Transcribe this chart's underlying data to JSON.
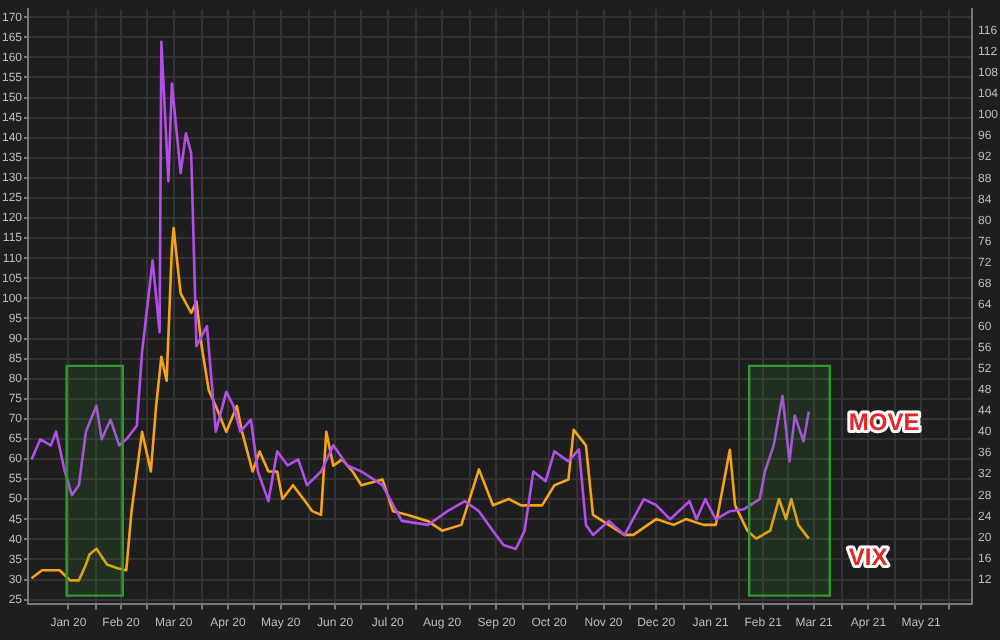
{
  "chart_data": {
    "type": "line",
    "xlim": [
      "2019-12-24",
      "2021-06-14"
    ],
    "xticks": [
      {
        "value": "2020-01-16",
        "label": "Jan 20"
      },
      {
        "value": "2020-02-01",
        "label": null
      },
      {
        "value": "2020-02-15",
        "label": "Feb 20"
      },
      {
        "value": "2020-03-01",
        "label": null
      },
      {
        "value": "2020-03-16",
        "label": "Mar 20"
      },
      {
        "value": "2020-04-01",
        "label": null
      },
      {
        "value": "2020-04-16",
        "label": "Apr 20"
      },
      {
        "value": "2020-05-01",
        "label": null
      },
      {
        "value": "2020-05-16",
        "label": "May 20"
      },
      {
        "value": "2020-06-01",
        "label": null
      },
      {
        "value": "2020-06-16",
        "label": "Jun 20"
      },
      {
        "value": "2020-07-01",
        "label": null
      },
      {
        "value": "2020-07-16",
        "label": "Jul 20"
      },
      {
        "value": "2020-08-01",
        "label": null
      },
      {
        "value": "2020-08-16",
        "label": "Aug 20"
      },
      {
        "value": "2020-09-01",
        "label": null
      },
      {
        "value": "2020-09-16",
        "label": "Sep 20"
      },
      {
        "value": "2020-10-01",
        "label": null
      },
      {
        "value": "2020-10-16",
        "label": "Oct 20"
      },
      {
        "value": "2020-11-01",
        "label": null
      },
      {
        "value": "2020-11-16",
        "label": "Nov 20"
      },
      {
        "value": "2020-12-01",
        "label": null
      },
      {
        "value": "2020-12-16",
        "label": "Dec 20"
      },
      {
        "value": "2021-01-01",
        "label": null
      },
      {
        "value": "2021-01-16",
        "label": "Jan 21"
      },
      {
        "value": "2021-02-01",
        "label": null
      },
      {
        "value": "2021-02-15",
        "label": "Feb 21"
      },
      {
        "value": "2021-03-01",
        "label": null
      },
      {
        "value": "2021-03-16",
        "label": "Mar 21"
      },
      {
        "value": "2021-04-01",
        "label": null
      },
      {
        "value": "2021-04-16",
        "label": "Apr 21"
      },
      {
        "value": "2021-05-01",
        "label": null
      },
      {
        "value": "2021-05-16",
        "label": "May 21"
      },
      {
        "value": "2021-06-01",
        "label": null
      }
    ],
    "ylim": [
      24,
      172
    ],
    "yticks": [
      25,
      30,
      35,
      40,
      45,
      50,
      55,
      60,
      65,
      70,
      75,
      80,
      85,
      90,
      95,
      100,
      105,
      110,
      115,
      120,
      125,
      130,
      135,
      140,
      145,
      150,
      155,
      160,
      165,
      170
    ],
    "y2lim": [
      7.5,
      120
    ],
    "y2ticks": [
      12,
      16,
      20,
      24,
      28,
      32,
      36,
      40,
      44,
      48,
      52,
      56,
      60,
      64,
      68,
      72,
      76,
      80,
      84,
      88,
      92,
      96,
      100,
      104,
      108,
      112,
      116
    ],
    "grid": true,
    "legend": false,
    "bands": [
      {
        "axis": "x",
        "from": "2020-01-15",
        "to": "2020-02-16",
        "color": "#2e9a2e"
      },
      {
        "axis": "x",
        "from": "2021-02-07",
        "to": "2021-03-25",
        "color": "#2e9a2e"
      }
    ],
    "series": [
      {
        "name": "MOVE",
        "color": "#b44ee8",
        "x": [
          "2019-12-26",
          "2019-12-31",
          "2020-01-06",
          "2020-01-09",
          "2020-01-14",
          "2020-01-18",
          "2020-01-22",
          "2020-01-26",
          "2020-02-01",
          "2020-02-04",
          "2020-02-09",
          "2020-02-14",
          "2020-02-18",
          "2020-02-24",
          "2020-02-27",
          "2020-03-04",
          "2020-03-08",
          "2020-03-09",
          "2020-03-13",
          "2020-03-15",
          "2020-03-20",
          "2020-03-23",
          "2020-03-26",
          "2020-03-29",
          "2020-04-04",
          "2020-04-09",
          "2020-04-15",
          "2020-04-19",
          "2020-04-23",
          "2020-04-29",
          "2020-05-03",
          "2020-05-09",
          "2020-05-14",
          "2020-05-20",
          "2020-05-26",
          "2020-05-31",
          "2020-06-08",
          "2020-06-15",
          "2020-06-23",
          "2020-07-01",
          "2020-07-13",
          "2020-07-24",
          "2020-08-08",
          "2020-08-19",
          "2020-08-29",
          "2020-09-06",
          "2020-09-14",
          "2020-09-20",
          "2020-09-27",
          "2020-10-02",
          "2020-10-07",
          "2020-10-14",
          "2020-10-19",
          "2020-10-27",
          "2020-11-02",
          "2020-11-06",
          "2020-11-10",
          "2020-11-19",
          "2020-11-28",
          "2020-12-09",
          "2020-12-16",
          "2020-12-24",
          "2021-01-04",
          "2021-01-08",
          "2021-01-13",
          "2021-01-19",
          "2021-01-27",
          "2021-02-04",
          "2021-02-13",
          "2021-02-16",
          "2021-02-21",
          "2021-02-26",
          "2021-03-02",
          "2021-03-05",
          "2021-03-10",
          "2021-03-13"
        ],
        "values": [
          59.9,
          64.9,
          63.4,
          66.8,
          56.9,
          51,
          53.5,
          66.8,
          73.3,
          64.9,
          69.8,
          63.4,
          64.9,
          68.3,
          86.6,
          109.4,
          91.6,
          163.9,
          129.2,
          153.5,
          131.2,
          141.1,
          136.1,
          88.1,
          93.1,
          66.8,
          76.7,
          73.3,
          66.8,
          69.8,
          56.9,
          49.5,
          61.9,
          58.4,
          59.9,
          53.5,
          56.9,
          63.4,
          58.4,
          56.9,
          53.5,
          44.6,
          43.6,
          47,
          49.5,
          47,
          42.1,
          38.6,
          37.6,
          42.1,
          56.9,
          54.5,
          61.9,
          59.4,
          62.4,
          43.6,
          41.1,
          44.6,
          41.1,
          50,
          48.5,
          45,
          49.5,
          45,
          50,
          45,
          47,
          47.5,
          50,
          56.9,
          63.4,
          75.7,
          59.4,
          70.8,
          64.4,
          71.8
        ]
      },
      {
        "name": "VIX",
        "color": "#f5a31a",
        "axis": "y2",
        "x": [
          "2019-12-26",
          "2020-01-01",
          "2020-01-11",
          "2020-01-17",
          "2020-01-22",
          "2020-01-26",
          "2020-01-28",
          "2020-02-01",
          "2020-02-07",
          "2020-02-13",
          "2020-02-18",
          "2020-02-21",
          "2020-02-27",
          "2020-03-03",
          "2020-03-06",
          "2020-03-09",
          "2020-03-12",
          "2020-03-15",
          "2020-03-16",
          "2020-03-18",
          "2020-03-20",
          "2020-03-26",
          "2020-03-29",
          "2020-04-01",
          "2020-04-05",
          "2020-04-09",
          "2020-04-15",
          "2020-04-21",
          "2020-04-24",
          "2020-04-30",
          "2020-05-04",
          "2020-05-09",
          "2020-05-14",
          "2020-05-17",
          "2020-05-23",
          "2020-05-29",
          "2020-06-03",
          "2020-06-08",
          "2020-06-11",
          "2020-06-15",
          "2020-06-20",
          "2020-06-26",
          "2020-07-01",
          "2020-07-13",
          "2020-07-19",
          "2020-07-27",
          "2020-08-08",
          "2020-08-16",
          "2020-08-27",
          "2020-09-06",
          "2020-09-14",
          "2020-09-23",
          "2020-09-30",
          "2020-10-12",
          "2020-10-19",
          "2020-10-27",
          "2020-10-30",
          "2020-11-06",
          "2020-11-10",
          "2020-11-19",
          "2020-11-28",
          "2020-12-03",
          "2020-12-16",
          "2020-12-26",
          "2021-01-02",
          "2021-01-12",
          "2021-01-19",
          "2021-01-27",
          "2021-01-30",
          "2021-02-06",
          "2021-02-11",
          "2021-02-19",
          "2021-02-24",
          "2021-02-28",
          "2021-03-03",
          "2021-03-07",
          "2021-03-13"
        ],
        "values": [
          12.3,
          13.8,
          13.8,
          11.9,
          11.9,
          14.9,
          16.8,
          17.9,
          14.9,
          14.2,
          13.8,
          25,
          40,
          32.5,
          44.9,
          54.2,
          49.7,
          74.8,
          78.6,
          72.2,
          66.2,
          62.5,
          64.7,
          56.1,
          47.9,
          44.9,
          40,
          44.9,
          40,
          32.5,
          36.3,
          32.5,
          32.5,
          27.3,
          29.9,
          27.3,
          25,
          24.3,
          40,
          33.6,
          34.8,
          32.5,
          29.9,
          31,
          25,
          24.3,
          23.1,
          21.3,
          22.4,
          32.9,
          26.1,
          27.3,
          26.1,
          26.1,
          29.9,
          31,
          40.4,
          37.4,
          24.3,
          22.4,
          20.5,
          20.5,
          23.5,
          22.4,
          23.5,
          22.4,
          22.4,
          36.6,
          26.1,
          21.3,
          19.8,
          21.3,
          27.3,
          23.5,
          27.3,
          22.4,
          19.8
        ]
      }
    ]
  }
}
